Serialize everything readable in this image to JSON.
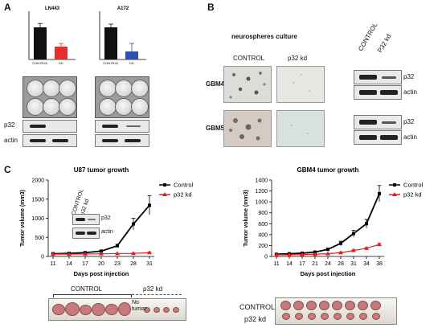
{
  "panels": {
    "A": {
      "letter": "A",
      "chart_left": {
        "title": "LN443",
        "categories": [
          "CONTROL",
          "KD"
        ]
      },
      "chart_right": {
        "title": "A172",
        "categories": [
          "CONTROL",
          "KD"
        ]
      },
      "blot_labels": [
        "p32",
        "actin"
      ]
    },
    "B": {
      "letter": "B",
      "culture_title": "neurospheres culture",
      "col_labels": [
        "CONTROL",
        "p32 kd"
      ],
      "row_labels": [
        "GBM4",
        "GBM5"
      ],
      "blot_header": [
        "CONTROL",
        "P32 kd"
      ],
      "blot_labels": [
        "p32",
        "actin",
        "p32",
        "actin"
      ]
    },
    "C": {
      "letter": "C",
      "inset_header": [
        "CONTROL",
        "p32 kd"
      ],
      "inset_labels": [
        "p32",
        "actin"
      ],
      "strip_left_labels": {
        "control": "CONTROL",
        "kd": "p32 kd",
        "no_tumor": "No tumor"
      },
      "strip_right_labels": {
        "control": "CONTROL",
        "kd": "p32 kd"
      }
    }
  },
  "colors": {
    "control": "#000000",
    "kd": "#e02020",
    "bar_kd_a": "#e53030",
    "bar_kd_b": "#3050b0"
  },
  "chart_data": [
    {
      "type": "line",
      "title": "U87 tumor growth",
      "xlabel": "Days post injection",
      "ylabel": "Tumor volume (mm3)",
      "x": [
        11,
        14,
        17,
        20,
        23,
        28,
        31
      ],
      "ylim": [
        0,
        2000
      ],
      "yticks": [
        0,
        500,
        1000,
        1500,
        2000
      ],
      "legend": "top-right",
      "series": [
        {
          "name": "Control",
          "values": [
            70,
            80,
            100,
            140,
            280,
            850,
            1340
          ],
          "errors": [
            10,
            10,
            15,
            20,
            40,
            150,
            250
          ]
        },
        {
          "name": "p32 kd",
          "values": [
            60,
            60,
            65,
            70,
            75,
            80,
            100
          ],
          "errors": [
            5,
            5,
            5,
            8,
            8,
            10,
            15
          ]
        }
      ]
    },
    {
      "type": "line",
      "title": "GBM4 tumor growth",
      "xlabel": "Days post injection",
      "ylabel": "Tumor volume (mm3)",
      "x": [
        11,
        14,
        17,
        21,
        24,
        28,
        31,
        34,
        38
      ],
      "ylim": [
        0,
        1400
      ],
      "yticks": [
        0,
        200,
        400,
        600,
        800,
        1000,
        1200,
        1400
      ],
      "legend": "top-right",
      "series": [
        {
          "name": "Control",
          "values": [
            40,
            50,
            60,
            80,
            130,
            240,
            420,
            600,
            1150
          ],
          "errors": [
            5,
            5,
            8,
            10,
            20,
            40,
            60,
            80,
            150
          ]
        },
        {
          "name": "p32 kd",
          "values": [
            30,
            30,
            35,
            40,
            50,
            70,
            110,
            150,
            220
          ],
          "errors": [
            3,
            3,
            4,
            5,
            6,
            10,
            12,
            15,
            20
          ]
        }
      ]
    },
    {
      "type": "bar",
      "title": "LN443",
      "categories": [
        "CONTROL",
        "KD"
      ],
      "values": [
        100,
        40
      ],
      "errors": [
        12,
        10
      ],
      "ylim": [
        0,
        150
      ]
    },
    {
      "type": "bar",
      "title": "A172",
      "categories": [
        "CONTROL",
        "KD"
      ],
      "values": [
        100,
        25
      ],
      "errors": [
        10,
        25
      ],
      "ylim": [
        0,
        150
      ]
    }
  ]
}
